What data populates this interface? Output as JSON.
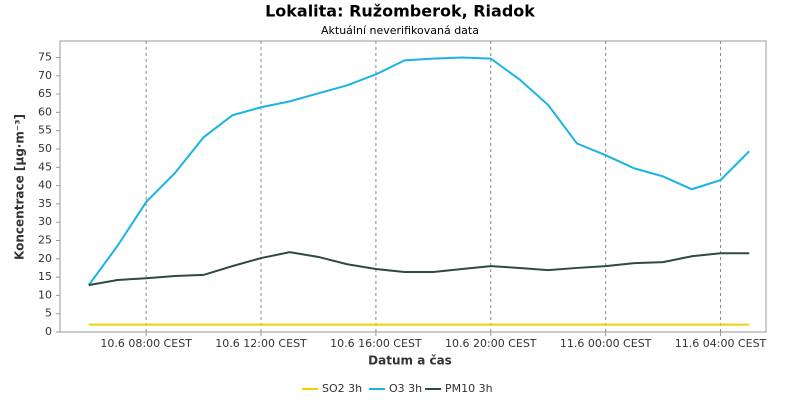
{
  "chart_data": {
    "type": "line",
    "title": "Lokalita: Ružomberok, Riadok",
    "subtitle": "Aktuální neverifikovaná data",
    "x_label": "Datum a čas",
    "y_label": "Koncentrace [µg·m⁻³]",
    "x": [
      "10.6 06:00 CEST",
      "10.6 07:00 CEST",
      "10.6 08:00 CEST",
      "10.6 09:00 CEST",
      "10.6 10:00 CEST",
      "10.6 11:00 CEST",
      "10.6 12:00 CEST",
      "10.6 13:00 CEST",
      "10.6 14:00 CEST",
      "10.6 15:00 CEST",
      "10.6 16:00 CEST",
      "10.6 17:00 CEST",
      "10.6 18:00 CEST",
      "10.6 19:00 CEST",
      "10.6 20:00 CEST",
      "10.6 21:00 CEST",
      "10.6 22:00 CEST",
      "10.6 23:00 CEST",
      "11.6 00:00 CEST",
      "11.6 01:00 CEST",
      "11.6 02:00 CEST",
      "11.6 03:00 CEST",
      "11.6 04:00 CEST",
      "11.6 05:00 CEST"
    ],
    "series": [
      {
        "name": "SO2 3h",
        "color": "#f5d000",
        "values": [
          2,
          2,
          2,
          2,
          2,
          2,
          2,
          2,
          2,
          2,
          2,
          2,
          2,
          2,
          2,
          2,
          2,
          2,
          2,
          2,
          2,
          2,
          2,
          2
        ]
      },
      {
        "name": "O3 3h",
        "color": "#1ab3e6",
        "values": [
          12.8,
          23.5,
          35.5,
          43.4,
          53.2,
          59.2,
          61.4,
          63,
          65.2,
          67.4,
          70.4,
          74.2,
          74.7,
          75,
          74.7,
          69,
          62,
          51.5,
          48.3,
          44.7,
          42.5,
          39,
          41.5,
          49.4
        ]
      },
      {
        "name": "PM10 3h",
        "color": "#2d4a44",
        "values": [
          12.8,
          14.2,
          14.7,
          15.3,
          15.6,
          18,
          20.2,
          21.8,
          20.5,
          18.5,
          17.2,
          16.4,
          16.4,
          17.2,
          18,
          17.5,
          16.9,
          17.5,
          18,
          18.8,
          19.1,
          20.7,
          21.5,
          21.5
        ]
      }
    ],
    "xlim": [
      "10.6 05:00 CEST",
      "11.6 05:35 CEST"
    ],
    "xticks": [
      "10.6 08:00 CEST",
      "10.6 12:00 CEST",
      "10.6 16:00 CEST",
      "10.6 20:00 CEST",
      "11.6 00:00 CEST",
      "11.6 04:00 CEST"
    ],
    "ylim": [
      0,
      79.5
    ],
    "yticks": [
      0,
      5,
      10,
      15,
      20,
      25,
      30,
      35,
      40,
      45,
      50,
      55,
      60,
      65,
      70,
      75
    ],
    "grid": "x",
    "legend": "bottom"
  }
}
